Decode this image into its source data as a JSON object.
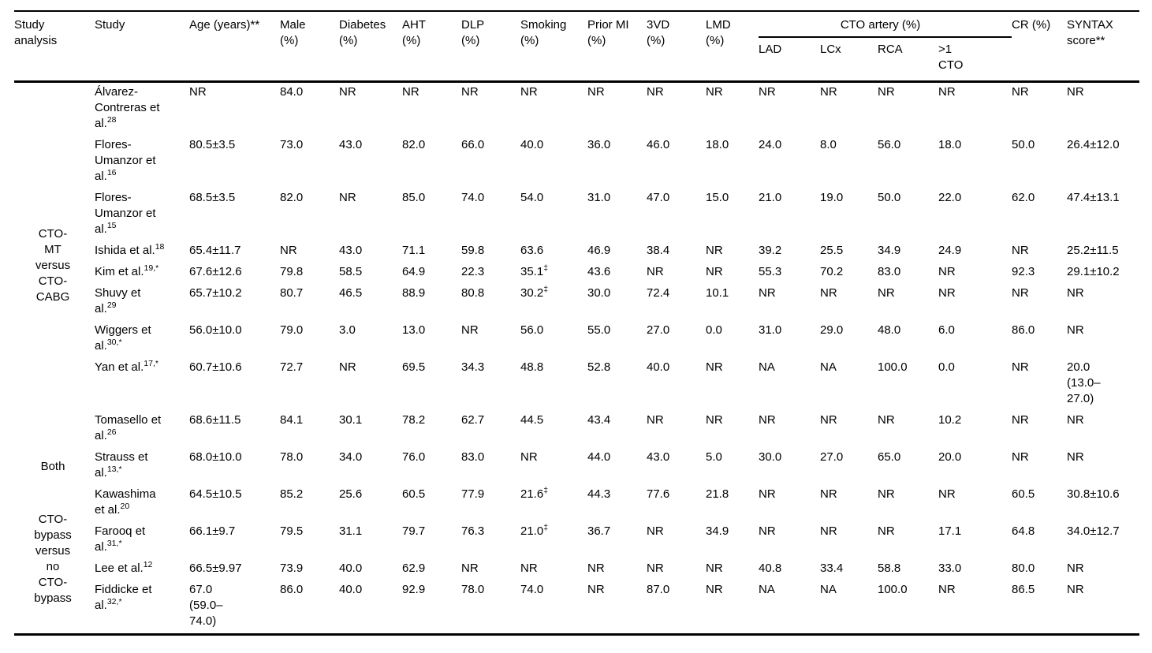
{
  "colors": {
    "background": "#ffffff",
    "text": "#000000",
    "rule": "#000000"
  },
  "table": {
    "header": {
      "study_analysis": "Study\nanalysis",
      "study": "Study",
      "age": "Age (years)**",
      "male": "Male\n(%)",
      "diabetes": "Diabetes\n(%)",
      "aht": "AHT\n(%)",
      "dlp": "DLP\n(%)",
      "smoking": "Smoking\n(%)",
      "prior_mi": "Prior MI\n(%)",
      "three_vd": "3VD\n(%)",
      "lmd": "LMD\n(%)",
      "cto_artery": "CTO artery (%)",
      "lad": "LAD",
      "lcx": "LCx",
      "rca": "RCA",
      "gt1_cto": ">1\nCTO",
      "cr": "CR (%)",
      "syntax": "SYNTAX\nscore**"
    },
    "value_keys": [
      "age",
      "male",
      "diabetes",
      "aht",
      "dlp",
      "smoking",
      "prior_mi",
      "three_vd",
      "lmd",
      "lad",
      "lcx",
      "rca",
      "gt1_cto",
      "cr",
      "syntax"
    ],
    "groups": [
      {
        "label": "CTO-\nMT\nversus\nCTO-\nCABG",
        "rows": [
          {
            "study": {
              "name": "Álvarez-Contreras et al.",
              "ref": "28"
            },
            "values": {
              "age": "NR",
              "male": "84.0",
              "diabetes": "NR",
              "aht": "NR",
              "dlp": "NR",
              "smoking": "NR",
              "prior_mi": "NR",
              "three_vd": "NR",
              "lmd": "NR",
              "lad": "NR",
              "lcx": "NR",
              "rca": "NR",
              "gt1_cto": "NR",
              "cr": "NR",
              "syntax": "NR"
            }
          },
          {
            "study": {
              "name": "Flores-Umanzor et al.",
              "ref": "16"
            },
            "values": {
              "age": "80.5±3.5",
              "male": "73.0",
              "diabetes": "43.0",
              "aht": "82.0",
              "dlp": "66.0",
              "smoking": "40.0",
              "prior_mi": "36.0",
              "three_vd": "46.0",
              "lmd": "18.0",
              "lad": "24.0",
              "lcx": "8.0",
              "rca": "56.0",
              "gt1_cto": "18.0",
              "cr": "50.0",
              "syntax": "26.4±12.0"
            }
          },
          {
            "study": {
              "name": "Flores-Umanzor et al.",
              "ref": "15"
            },
            "values": {
              "age": "68.5±3.5",
              "male": "82.0",
              "diabetes": "NR",
              "aht": "85.0",
              "dlp": "74.0",
              "smoking": "54.0",
              "prior_mi": "31.0",
              "three_vd": "47.0",
              "lmd": "15.0",
              "lad": "21.0",
              "lcx": "19.0",
              "rca": "50.0",
              "gt1_cto": "22.0",
              "cr": "62.0",
              "syntax": "47.4±13.1"
            }
          },
          {
            "study": {
              "name": "Ishida et al.",
              "ref": "18"
            },
            "values": {
              "age": "65.4±11.7",
              "male": "NR",
              "diabetes": "43.0",
              "aht": "71.1",
              "dlp": "59.8",
              "smoking": "63.6",
              "prior_mi": "46.9",
              "three_vd": "38.4",
              "lmd": "NR",
              "lad": "39.2",
              "lcx": "25.5",
              "rca": "34.9",
              "gt1_cto": "24.9",
              "cr": "NR",
              "syntax": "25.2±11.5"
            }
          },
          {
            "study": {
              "name": "Kim et al.",
              "ref": "19,*"
            },
            "values": {
              "age": "67.6±12.6",
              "male": "79.8",
              "diabetes": "58.5",
              "aht": "64.9",
              "dlp": "22.3",
              "smoking": "35.1‡",
              "prior_mi": "43.6",
              "three_vd": "NR",
              "lmd": "NR",
              "lad": "55.3",
              "lcx": "70.2",
              "rca": "83.0",
              "gt1_cto": "NR",
              "cr": "92.3",
              "syntax": "29.1±10.2"
            }
          },
          {
            "study": {
              "name": "Shuvy et al.",
              "ref": "29"
            },
            "values": {
              "age": "65.7±10.2",
              "male": "80.7",
              "diabetes": "46.5",
              "aht": "88.9",
              "dlp": "80.8",
              "smoking": "30.2‡",
              "prior_mi": "30.0",
              "three_vd": "72.4",
              "lmd": "10.1",
              "lad": "NR",
              "lcx": "NR",
              "rca": "NR",
              "gt1_cto": "NR",
              "cr": "NR",
              "syntax": "NR"
            }
          },
          {
            "study": {
              "name": "Wiggers et al.",
              "ref": "30,*"
            },
            "values": {
              "age": "56.0±10.0",
              "male": "79.0",
              "diabetes": "3.0",
              "aht": "13.0",
              "dlp": "NR",
              "smoking": "56.0",
              "prior_mi": "55.0",
              "three_vd": "27.0",
              "lmd": "0.0",
              "lad": "31.0",
              "lcx": "29.0",
              "rca": "48.0",
              "gt1_cto": "6.0",
              "cr": "86.0",
              "syntax": "NR"
            }
          },
          {
            "study": {
              "name": "Yan et al.",
              "ref": "17,*"
            },
            "values": {
              "age": "60.7±10.6",
              "male": "72.7",
              "diabetes": "NR",
              "aht": "69.5",
              "dlp": "34.3",
              "smoking": "48.8",
              "prior_mi": "52.8",
              "three_vd": "40.0",
              "lmd": "NR",
              "lad": "NA",
              "lcx": "NA",
              "rca": "100.0",
              "gt1_cto": "0.0",
              "cr": "NR",
              "syntax": "20.0\n(13.0–\n27.0)"
            }
          },
          {
            "study": {
              "name": "Tomasello et al.",
              "ref": "26"
            },
            "values": {
              "age": "68.6±11.5",
              "male": "84.1",
              "diabetes": "30.1",
              "aht": "78.2",
              "dlp": "62.7",
              "smoking": "44.5",
              "prior_mi": "43.4",
              "three_vd": "NR",
              "lmd": "NR",
              "lad": "NR",
              "lcx": "NR",
              "rca": "NR",
              "gt1_cto": "10.2",
              "cr": "NR",
              "syntax": "NR"
            }
          }
        ]
      },
      {
        "label": "Both",
        "rows": [
          {
            "study": {
              "name": "Strauss et al.",
              "ref": "13,*"
            },
            "values": {
              "age": "68.0±10.0",
              "male": "78.0",
              "diabetes": "34.0",
              "aht": "76.0",
              "dlp": "83.0",
              "smoking": "NR",
              "prior_mi": "44.0",
              "three_vd": "43.0",
              "lmd": "5.0",
              "lad": "30.0",
              "lcx": "27.0",
              "rca": "65.0",
              "gt1_cto": "20.0",
              "cr": "NR",
              "syntax": "NR"
            }
          }
        ]
      },
      {
        "label": "CTO-\nbypass\nversus\nno\nCTO-\nbypass",
        "rows": [
          {
            "study": {
              "name": "Kawashima et al.",
              "ref": "20"
            },
            "values": {
              "age": "64.5±10.5",
              "male": "85.2",
              "diabetes": "25.6",
              "aht": "60.5",
              "dlp": "77.9",
              "smoking": "21.6‡",
              "prior_mi": "44.3",
              "three_vd": "77.6",
              "lmd": "21.8",
              "lad": "NR",
              "lcx": "NR",
              "rca": "NR",
              "gt1_cto": "NR",
              "cr": "60.5",
              "syntax": "30.8±10.6"
            }
          },
          {
            "study": {
              "name": "Farooq et al.",
              "ref": "31,*"
            },
            "values": {
              "age": "66.1±9.7",
              "male": "79.5",
              "diabetes": "31.1",
              "aht": "79.7",
              "dlp": "76.3",
              "smoking": "21.0‡",
              "prior_mi": "36.7",
              "three_vd": "NR",
              "lmd": "34.9",
              "lad": "NR",
              "lcx": "NR",
              "rca": "NR",
              "gt1_cto": "17.1",
              "cr": "64.8",
              "syntax": "34.0±12.7"
            }
          },
          {
            "study": {
              "name": "Lee et al.",
              "ref": "12"
            },
            "values": {
              "age": "66.5±9.97",
              "male": "73.9",
              "diabetes": "40.0",
              "aht": "62.9",
              "dlp": "NR",
              "smoking": "NR",
              "prior_mi": "NR",
              "three_vd": "NR",
              "lmd": "NR",
              "lad": "40.8",
              "lcx": "33.4",
              "rca": "58.8",
              "gt1_cto": "33.0",
              "cr": "80.0",
              "syntax": "NR"
            }
          },
          {
            "study": {
              "name": "Fiddicke et al.",
              "ref": "32,*"
            },
            "values": {
              "age": "67.0\n(59.0–\n74.0)",
              "male": "86.0",
              "diabetes": "40.0",
              "aht": "92.9",
              "dlp": "78.0",
              "smoking": "74.0",
              "prior_mi": "NR",
              "three_vd": "87.0",
              "lmd": "NR",
              "lad": "NA",
              "lcx": "NA",
              "rca": "100.0",
              "gt1_cto": "NR",
              "cr": "86.5",
              "syntax": "NR"
            }
          }
        ]
      }
    ]
  }
}
